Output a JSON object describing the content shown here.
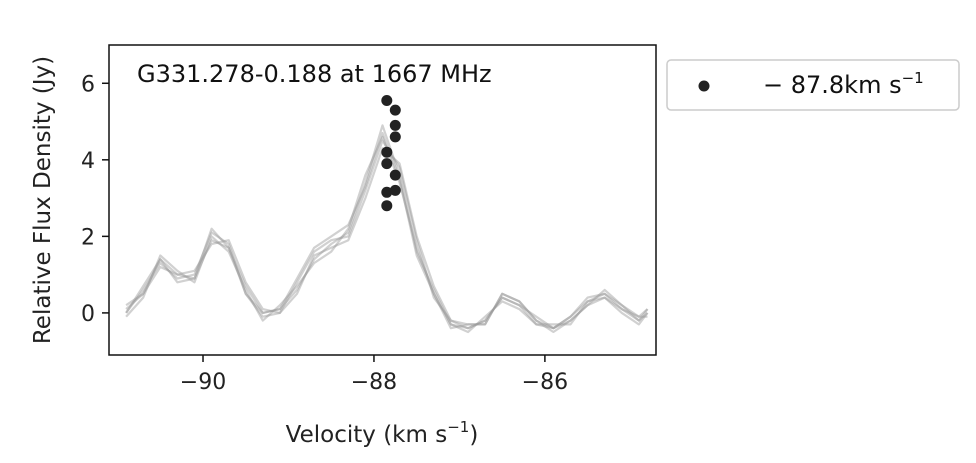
{
  "chart_data": {
    "type": "line",
    "title": "",
    "annotation": "G331.278-0.188 at 1667 MHz",
    "xlabel": "Velocity (km s",
    "xlabel_sup": "−1",
    "xlabel_end": ")",
    "ylabel": "Relative Flux Density (Jy)",
    "xlim": [
      -91.1,
      -84.7
    ],
    "ylim": [
      -1.1,
      7.0
    ],
    "xticks": [
      -90,
      -88,
      -86
    ],
    "xtick_labels": [
      "−90",
      "−88",
      "−86"
    ],
    "yticks": [
      0,
      2,
      4,
      6
    ],
    "ytick_labels": [
      "0",
      "2",
      "4",
      "6"
    ],
    "grid": false,
    "legend": {
      "placement": "outside-top-right",
      "entries": [
        {
          "label": "− 87.8km s",
          "label_sup": "−1",
          "marker": "circle",
          "color": "#222222"
        }
      ]
    },
    "line_color": "#999999",
    "marker_color": "#222222",
    "spectra": [
      {
        "x": [
          -90.9,
          -90.7,
          -90.5,
          -90.3,
          -90.1,
          -89.9,
          -89.7,
          -89.5,
          -89.3,
          -89.1,
          -88.9,
          -88.7,
          -88.5,
          -88.3,
          -88.1,
          -87.9,
          -87.7,
          -87.5,
          -87.3,
          -87.1,
          -86.9,
          -86.7,
          -86.5,
          -86.3,
          -86.1,
          -85.9,
          -85.7,
          -85.5,
          -85.3,
          -85.1,
          -84.9,
          -84.8
        ],
        "y": [
          0.1,
          0.5,
          1.4,
          1.0,
          0.9,
          1.9,
          1.7,
          0.7,
          0.0,
          0.1,
          0.6,
          1.4,
          1.8,
          2.1,
          3.4,
          4.9,
          3.6,
          1.6,
          0.6,
          -0.3,
          -0.4,
          -0.2,
          0.4,
          0.2,
          -0.3,
          -0.4,
          -0.1,
          0.3,
          0.5,
          0.1,
          -0.2,
          0.0
        ]
      },
      {
        "x": [
          -90.9,
          -90.7,
          -90.5,
          -90.3,
          -90.1,
          -89.9,
          -89.7,
          -89.5,
          -89.3,
          -89.1,
          -88.9,
          -88.7,
          -88.5,
          -88.3,
          -88.1,
          -87.9,
          -87.7,
          -87.5,
          -87.3,
          -87.1,
          -86.9,
          -86.7,
          -86.5,
          -86.3,
          -86.1,
          -85.9,
          -85.7,
          -85.5,
          -85.3,
          -85.1,
          -84.9,
          -84.8
        ],
        "y": [
          0.0,
          0.6,
          1.3,
          0.9,
          1.0,
          2.1,
          1.8,
          0.5,
          -0.1,
          0.0,
          0.8,
          1.6,
          1.9,
          2.0,
          3.2,
          4.5,
          3.8,
          1.9,
          0.4,
          -0.2,
          -0.3,
          -0.3,
          0.5,
          0.3,
          -0.2,
          -0.5,
          -0.2,
          0.2,
          0.6,
          0.2,
          -0.1,
          0.1
        ]
      },
      {
        "x": [
          -90.9,
          -90.7,
          -90.5,
          -90.3,
          -90.1,
          -89.9,
          -89.7,
          -89.5,
          -89.3,
          -89.1,
          -88.9,
          -88.7,
          -88.5,
          -88.3,
          -88.1,
          -87.9,
          -87.7,
          -87.5,
          -87.3,
          -87.1,
          -86.9,
          -86.7,
          -86.5,
          -86.3,
          -86.1,
          -85.9,
          -85.7,
          -85.5,
          -85.3,
          -85.1,
          -84.9,
          -84.8
        ],
        "y": [
          -0.1,
          0.4,
          1.5,
          1.1,
          0.8,
          2.0,
          1.6,
          0.6,
          -0.2,
          0.2,
          0.7,
          1.3,
          1.6,
          2.2,
          3.6,
          4.6,
          3.4,
          1.7,
          0.5,
          -0.3,
          -0.5,
          -0.1,
          0.3,
          0.1,
          -0.3,
          -0.3,
          -0.3,
          0.3,
          0.4,
          0.0,
          -0.3,
          0.0
        ]
      },
      {
        "x": [
          -90.9,
          -90.7,
          -90.5,
          -90.3,
          -90.1,
          -89.9,
          -89.7,
          -89.5,
          -89.3,
          -89.1,
          -88.9,
          -88.7,
          -88.5,
          -88.3,
          -88.1,
          -87.9,
          -87.7,
          -87.5,
          -87.3,
          -87.1,
          -86.9,
          -86.7,
          -86.5,
          -86.3,
          -86.1,
          -85.9,
          -85.7,
          -85.5,
          -85.3,
          -85.1,
          -84.9,
          -84.8
        ],
        "y": [
          0.2,
          0.5,
          1.2,
          1.0,
          1.1,
          1.8,
          1.9,
          0.8,
          0.1,
          0.0,
          0.5,
          1.5,
          1.7,
          1.9,
          3.0,
          4.3,
          3.9,
          2.0,
          0.7,
          -0.2,
          -0.4,
          -0.2,
          0.4,
          0.2,
          -0.1,
          -0.4,
          -0.1,
          0.4,
          0.5,
          0.2,
          -0.2,
          0.1
        ]
      },
      {
        "x": [
          -90.9,
          -90.7,
          -90.5,
          -90.3,
          -90.1,
          -89.9,
          -89.7,
          -89.5,
          -89.3,
          -89.1,
          -88.9,
          -88.7,
          -88.5,
          -88.3,
          -88.1,
          -87.9,
          -87.7,
          -87.5,
          -87.3,
          -87.1,
          -86.9,
          -86.7,
          -86.5,
          -86.3,
          -86.1,
          -85.9,
          -85.7,
          -85.5,
          -85.3,
          -85.1,
          -84.9,
          -84.8
        ],
        "y": [
          0.0,
          0.7,
          1.4,
          0.8,
          0.9,
          2.2,
          1.7,
          0.5,
          0.0,
          0.1,
          0.9,
          1.7,
          2.0,
          2.3,
          3.3,
          4.7,
          3.5,
          1.5,
          0.5,
          -0.4,
          -0.3,
          -0.3,
          0.5,
          0.3,
          -0.2,
          -0.4,
          -0.2,
          0.2,
          0.4,
          0.1,
          -0.1,
          -0.1
        ]
      }
    ],
    "markers": {
      "x": [
        -87.85,
        -87.75,
        -87.75,
        -87.75,
        -87.85,
        -87.85,
        -87.75,
        -87.75,
        -87.85,
        -87.85
      ],
      "y": [
        5.55,
        5.3,
        4.9,
        4.6,
        4.2,
        3.9,
        3.6,
        3.2,
        3.15,
        2.8
      ]
    }
  }
}
